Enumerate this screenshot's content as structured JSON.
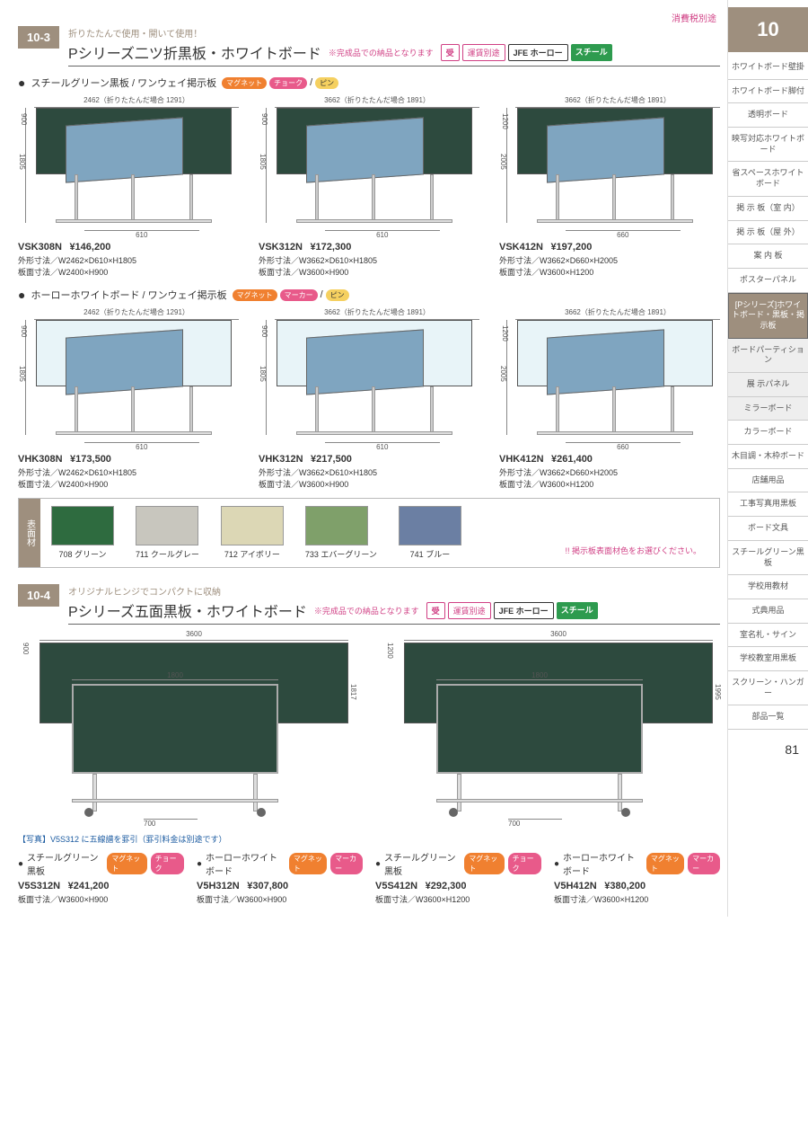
{
  "tax_note": "消費税別途",
  "chapter_num": "10",
  "page_num": "81",
  "section1": {
    "num": "10-3",
    "subtitle": "折りたたんで使用・開いて使用！",
    "title": "Pシリーズ二ツ折黒板・ホワイトボード",
    "note": "※完成品での納品となります",
    "badges": {
      "ju": "受",
      "ship": "運賃別途",
      "jfe": "JFE ホーロー",
      "steel": "スチール"
    }
  },
  "sub1": {
    "title": "スチールグリーン黒板 / ワンウェイ掲示板",
    "mb": [
      "マグネット",
      "チョーク",
      "ピン"
    ]
  },
  "sub2": {
    "title": "ホーローホワイトボード / ワンウェイ掲示板",
    "mb": [
      "マグネット",
      "マーカー",
      "ピン"
    ]
  },
  "row1": [
    {
      "top": "2462（折りたたんだ場合 1291）",
      "h1": "900",
      "h2": "1805",
      "d": "610",
      "code": "VSK308N",
      "price": "¥146,200",
      "line1": "外形寸法／W2462×D610×H1805",
      "line2": "板面寸法／W2400×H900"
    },
    {
      "top": "3662（折りたたんだ場合 1891）",
      "h1": "900",
      "h2": "1805",
      "d": "610",
      "code": "VSK312N",
      "price": "¥172,300",
      "line1": "外形寸法／W3662×D610×H1805",
      "line2": "板面寸法／W3600×H900"
    },
    {
      "top": "3662（折りたたんだ場合 1891）",
      "h1": "1200",
      "h2": "2005",
      "d": "660",
      "code": "VSK412N",
      "price": "¥197,200",
      "line1": "外形寸法／W3662×D660×H2005",
      "line2": "板面寸法／W3600×H1200"
    }
  ],
  "row2": [
    {
      "top": "2462（折りたたんだ場合 1291）",
      "h1": "900",
      "h2": "1805",
      "d": "610",
      "code": "VHK308N",
      "price": "¥173,500",
      "line1": "外形寸法／W2462×D610×H1805",
      "line2": "板面寸法／W2400×H900"
    },
    {
      "top": "3662（折りたたんだ場合 1891）",
      "h1": "900",
      "h2": "1805",
      "d": "610",
      "code": "VHK312N",
      "price": "¥217,500",
      "line1": "外形寸法／W3662×D610×H1805",
      "line2": "板面寸法／W3600×H900"
    },
    {
      "top": "3662（折りたたんだ場合 1891）",
      "h1": "1200",
      "h2": "2005",
      "d": "660",
      "code": "VHK412N",
      "price": "¥261,400",
      "line1": "外形寸法／W3662×D660×H2005",
      "line2": "板面寸法／W3600×H1200"
    }
  ],
  "swatch": {
    "label": "表面材",
    "items": [
      {
        "name": "708 グリーン",
        "color": "#2e6b3f"
      },
      {
        "name": "711 クールグレー",
        "color": "#c8c6be"
      },
      {
        "name": "712 アイボリー",
        "color": "#dcd7b5"
      },
      {
        "name": "733 エバーグリーン",
        "color": "#7fa06a"
      },
      {
        "name": "741 ブルー",
        "color": "#6b7fa3"
      }
    ],
    "note": "!! 掲示板表面材色をお選びください。"
  },
  "section2": {
    "num": "10-4",
    "subtitle": "オリジナルヒンジでコンパクトに収納",
    "title": "Pシリーズ五面黒板・ホワイトボード",
    "note": "※完成品での納品となります"
  },
  "big": [
    {
      "w": "3600",
      "fw": "1800",
      "h": "900",
      "sh": "1817",
      "d": "700"
    },
    {
      "w": "3600",
      "fw": "1800",
      "h": "1200",
      "sh": "1995",
      "d": "700"
    }
  ],
  "photo_note": "【写真】V5S312 に五線譜を罫引（罫引料金は別途です）",
  "row4": [
    {
      "head": "スチールグリーン黒板",
      "mb": [
        "マグネット",
        "チョーク"
      ],
      "code": "V5S312N",
      "price": "¥241,200",
      "line": "板面寸法／W3600×H900"
    },
    {
      "head": "ホーローホワイトボード",
      "mb": [
        "マグネット",
        "マーカー"
      ],
      "code": "V5H312N",
      "price": "¥307,800",
      "line": "板面寸法／W3600×H900"
    },
    {
      "head": "スチールグリーン黒板",
      "mb": [
        "マグネット",
        "チョーク"
      ],
      "code": "V5S412N",
      "price": "¥292,300",
      "line": "板面寸法／W3600×H1200"
    },
    {
      "head": "ホーローホワイトボード",
      "mb": [
        "マグネット",
        "マーカー"
      ],
      "code": "V5H412N",
      "price": "¥380,200",
      "line": "板面寸法／W3600×H1200"
    }
  ],
  "nav": [
    "ホワイトボード壁掛",
    "ホワイトボード脚付",
    "透明ボード",
    "映写対応ホワイトボード",
    "省スペースホワイトボード",
    "掲 示 板（室 内）",
    "掲 示 板（屋 外）",
    "案 内 板",
    "ポスターパネル",
    "[Pシリーズ]ホワイトボード・黒板・掲示板",
    "ボードパーティション",
    "展 示パネル",
    "ミラーボード",
    "カラーボード",
    "木目調・木枠ボード",
    "店舗用品",
    "工事写真用黒板",
    "ボード文具",
    "スチールグリーン黒板",
    "学校用教材",
    "式典用品",
    "室名札・サイン",
    "学校教室用黒板",
    "スクリーン・ハンガー",
    "部品一覧"
  ],
  "nav_sel_index": 9,
  "nav_shade_indexes": [
    10,
    11,
    12
  ]
}
